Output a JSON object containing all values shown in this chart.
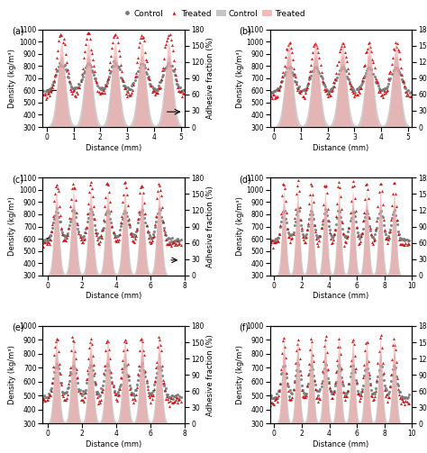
{
  "subplot_labels": [
    "(a)",
    "(b)",
    "(c)",
    "(d)",
    "(e)",
    "(f)"
  ],
  "legend_control_color": "#7a7a7a",
  "legend_treated_color": "#cc1111",
  "fill_control_color": "#b0b0b0",
  "fill_treated_color": "#f5a0a0",
  "background_color": "#ffffff",
  "subplot_label_fontsize": 7,
  "axis_label_fontsize": 6,
  "tick_fontsize": 5.5,
  "configs": [
    {
      "peaks": [
        0.55,
        1.55,
        2.55,
        3.55,
        4.55
      ],
      "xrange": [
        -0.15,
        5.15
      ],
      "xlim": [
        -0.15,
        5.15
      ],
      "xticks": [
        0,
        1,
        2,
        3,
        4,
        5
      ],
      "ylim_d": [
        300,
        1100
      ],
      "yticks_d": [
        300,
        400,
        500,
        600,
        700,
        800,
        900,
        1000,
        1100
      ],
      "show_arrows": true,
      "base_ctrl": 590,
      "base_treat": 560,
      "peak_ctrl": 820,
      "peak_treat": 1060,
      "sigma_d": 0.2,
      "sigma_adh": 0.13,
      "adh_peak": 155,
      "label": "(a)"
    },
    {
      "peaks": [
        0.55,
        1.55,
        2.55,
        3.55,
        4.55
      ],
      "xrange": [
        -0.15,
        5.15
      ],
      "xlim": [
        -0.15,
        5.15
      ],
      "xticks": [
        0,
        1,
        2,
        3,
        4,
        5
      ],
      "ylim_d": [
        300,
        1100
      ],
      "yticks_d": [
        300,
        400,
        500,
        600,
        700,
        800,
        900,
        1000,
        1100
      ],
      "show_arrows": false,
      "base_ctrl": 580,
      "base_treat": 550,
      "peak_ctrl": 790,
      "peak_treat": 990,
      "sigma_d": 0.2,
      "sigma_adh": 0.13,
      "adh_peak": 155,
      "label": "(b)"
    },
    {
      "peaks": [
        0.5,
        1.5,
        2.5,
        3.5,
        4.5,
        5.5,
        6.5
      ],
      "xrange": [
        -0.3,
        7.8
      ],
      "xlim": [
        -0.3,
        7.8
      ],
      "xticks": [
        0,
        2,
        4,
        6,
        8
      ],
      "ylim_d": [
        300,
        1100
      ],
      "yticks_d": [
        300,
        400,
        500,
        600,
        700,
        800,
        900,
        1000,
        1100
      ],
      "show_arrows": true,
      "base_ctrl": 590,
      "base_treat": 560,
      "peak_ctrl": 830,
      "peak_treat": 1060,
      "sigma_d": 0.2,
      "sigma_adh": 0.13,
      "adh_peak": 155,
      "label": "(c)"
    },
    {
      "peaks": [
        0.7,
        1.7,
        2.7,
        3.7,
        4.7,
        5.7,
        6.7,
        7.7,
        8.7
      ],
      "xrange": [
        -0.3,
        9.8
      ],
      "xlim": [
        -0.3,
        9.8
      ],
      "xticks": [
        0,
        2,
        4,
        6,
        8,
        10
      ],
      "ylim_d": [
        300,
        1100
      ],
      "yticks_d": [
        300,
        400,
        500,
        600,
        700,
        800,
        900,
        1000,
        1100
      ],
      "show_arrows": false,
      "base_ctrl": 590,
      "base_treat": 560,
      "peak_ctrl": 830,
      "peak_treat": 1060,
      "sigma_d": 0.2,
      "sigma_adh": 0.13,
      "adh_peak": 155,
      "label": "(d)"
    },
    {
      "peaks": [
        0.5,
        1.5,
        2.5,
        3.5,
        4.5,
        5.5,
        6.5
      ],
      "xrange": [
        -0.3,
        7.8
      ],
      "xlim": [
        -0.3,
        7.8
      ],
      "xticks": [
        0,
        2,
        4,
        6,
        8
      ],
      "ylim_d": [
        300,
        1000
      ],
      "yticks_d": [
        300,
        400,
        500,
        600,
        700,
        800,
        900,
        1000
      ],
      "show_arrows": false,
      "base_ctrl": 490,
      "base_treat": 460,
      "peak_ctrl": 720,
      "peak_treat": 910,
      "sigma_d": 0.2,
      "sigma_adh": 0.13,
      "adh_peak": 155,
      "label": "(e)"
    },
    {
      "peaks": [
        0.7,
        1.7,
        2.7,
        3.7,
        4.7,
        5.7,
        6.7,
        7.7,
        8.7
      ],
      "xrange": [
        -0.3,
        9.8
      ],
      "xlim": [
        -0.3,
        9.8
      ],
      "xticks": [
        0,
        2,
        4,
        6,
        8,
        10
      ],
      "ylim_d": [
        300,
        1000
      ],
      "yticks_d": [
        300,
        400,
        500,
        600,
        700,
        800,
        900,
        1000
      ],
      "show_arrows": false,
      "base_ctrl": 490,
      "base_treat": 460,
      "peak_ctrl": 720,
      "peak_treat": 910,
      "sigma_d": 0.2,
      "sigma_adh": 0.13,
      "adh_peak": 155,
      "label": "(f)"
    }
  ]
}
